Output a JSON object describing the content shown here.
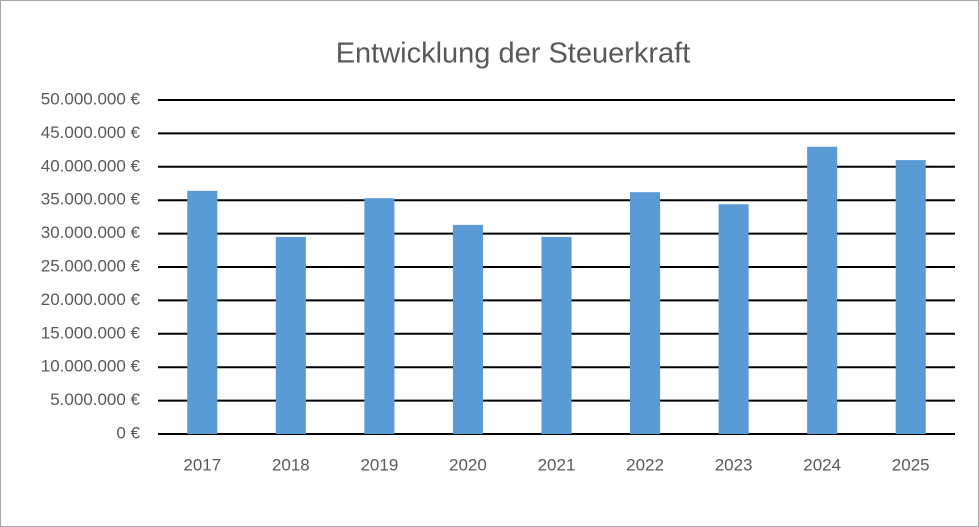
{
  "chart_data": {
    "type": "bar",
    "title": "Entwicklung der Steuerkraft",
    "categories": [
      "2017",
      "2018",
      "2019",
      "2020",
      "2021",
      "2022",
      "2023",
      "2024",
      "2025"
    ],
    "values": [
      36400000,
      29500000,
      35300000,
      31300000,
      29500000,
      36200000,
      34400000,
      43000000,
      41000000
    ],
    "color": "#5b9bd5",
    "ylim": [
      0,
      50000000
    ],
    "yticks": [
      {
        "value": 0,
        "label": "0 €"
      },
      {
        "value": 5000000,
        "label": "5.000.000 €"
      },
      {
        "value": 10000000,
        "label": "10.000.000 €"
      },
      {
        "value": 15000000,
        "label": "15.000.000 €"
      },
      {
        "value": 20000000,
        "label": "20.000.000 €"
      },
      {
        "value": 25000000,
        "label": "25.000.000 €"
      },
      {
        "value": 30000000,
        "label": "30.000.000 €"
      },
      {
        "value": 35000000,
        "label": "35.000.000 €"
      },
      {
        "value": 40000000,
        "label": "40.000.000 €"
      },
      {
        "value": 45000000,
        "label": "45.000.000 €"
      },
      {
        "value": 50000000,
        "label": "50.000.000 €"
      }
    ],
    "grid": true
  }
}
